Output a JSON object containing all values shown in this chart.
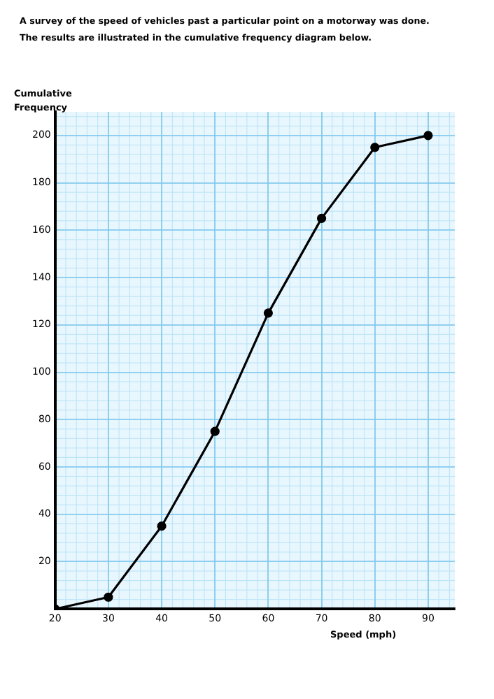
{
  "chart_data": {
    "type": "line",
    "title": "A survey of the speed of vehicles past a particular point on a motorway was done.\nThe results are illustrated in the cumulative frequency diagram below.",
    "xlabel": "Speed (mph)",
    "ylabel": "Cumulative Frequency",
    "x": [
      20,
      30,
      40,
      50,
      60,
      70,
      80,
      90
    ],
    "series": [
      {
        "color": "#000000",
        "values": [
          0,
          5,
          35,
          75,
          125,
          165,
          195,
          200
        ]
      }
    ],
    "xlim": [
      20,
      95
    ],
    "ylim": [
      0,
      210
    ],
    "xticks": [
      20,
      30,
      40,
      50,
      60,
      70,
      80,
      90
    ],
    "yticks": [
      20,
      40,
      60,
      80,
      100,
      120,
      140,
      160,
      180,
      200
    ],
    "grid": true,
    "legend": false,
    "marker": "circle",
    "line_style": "solid"
  }
}
